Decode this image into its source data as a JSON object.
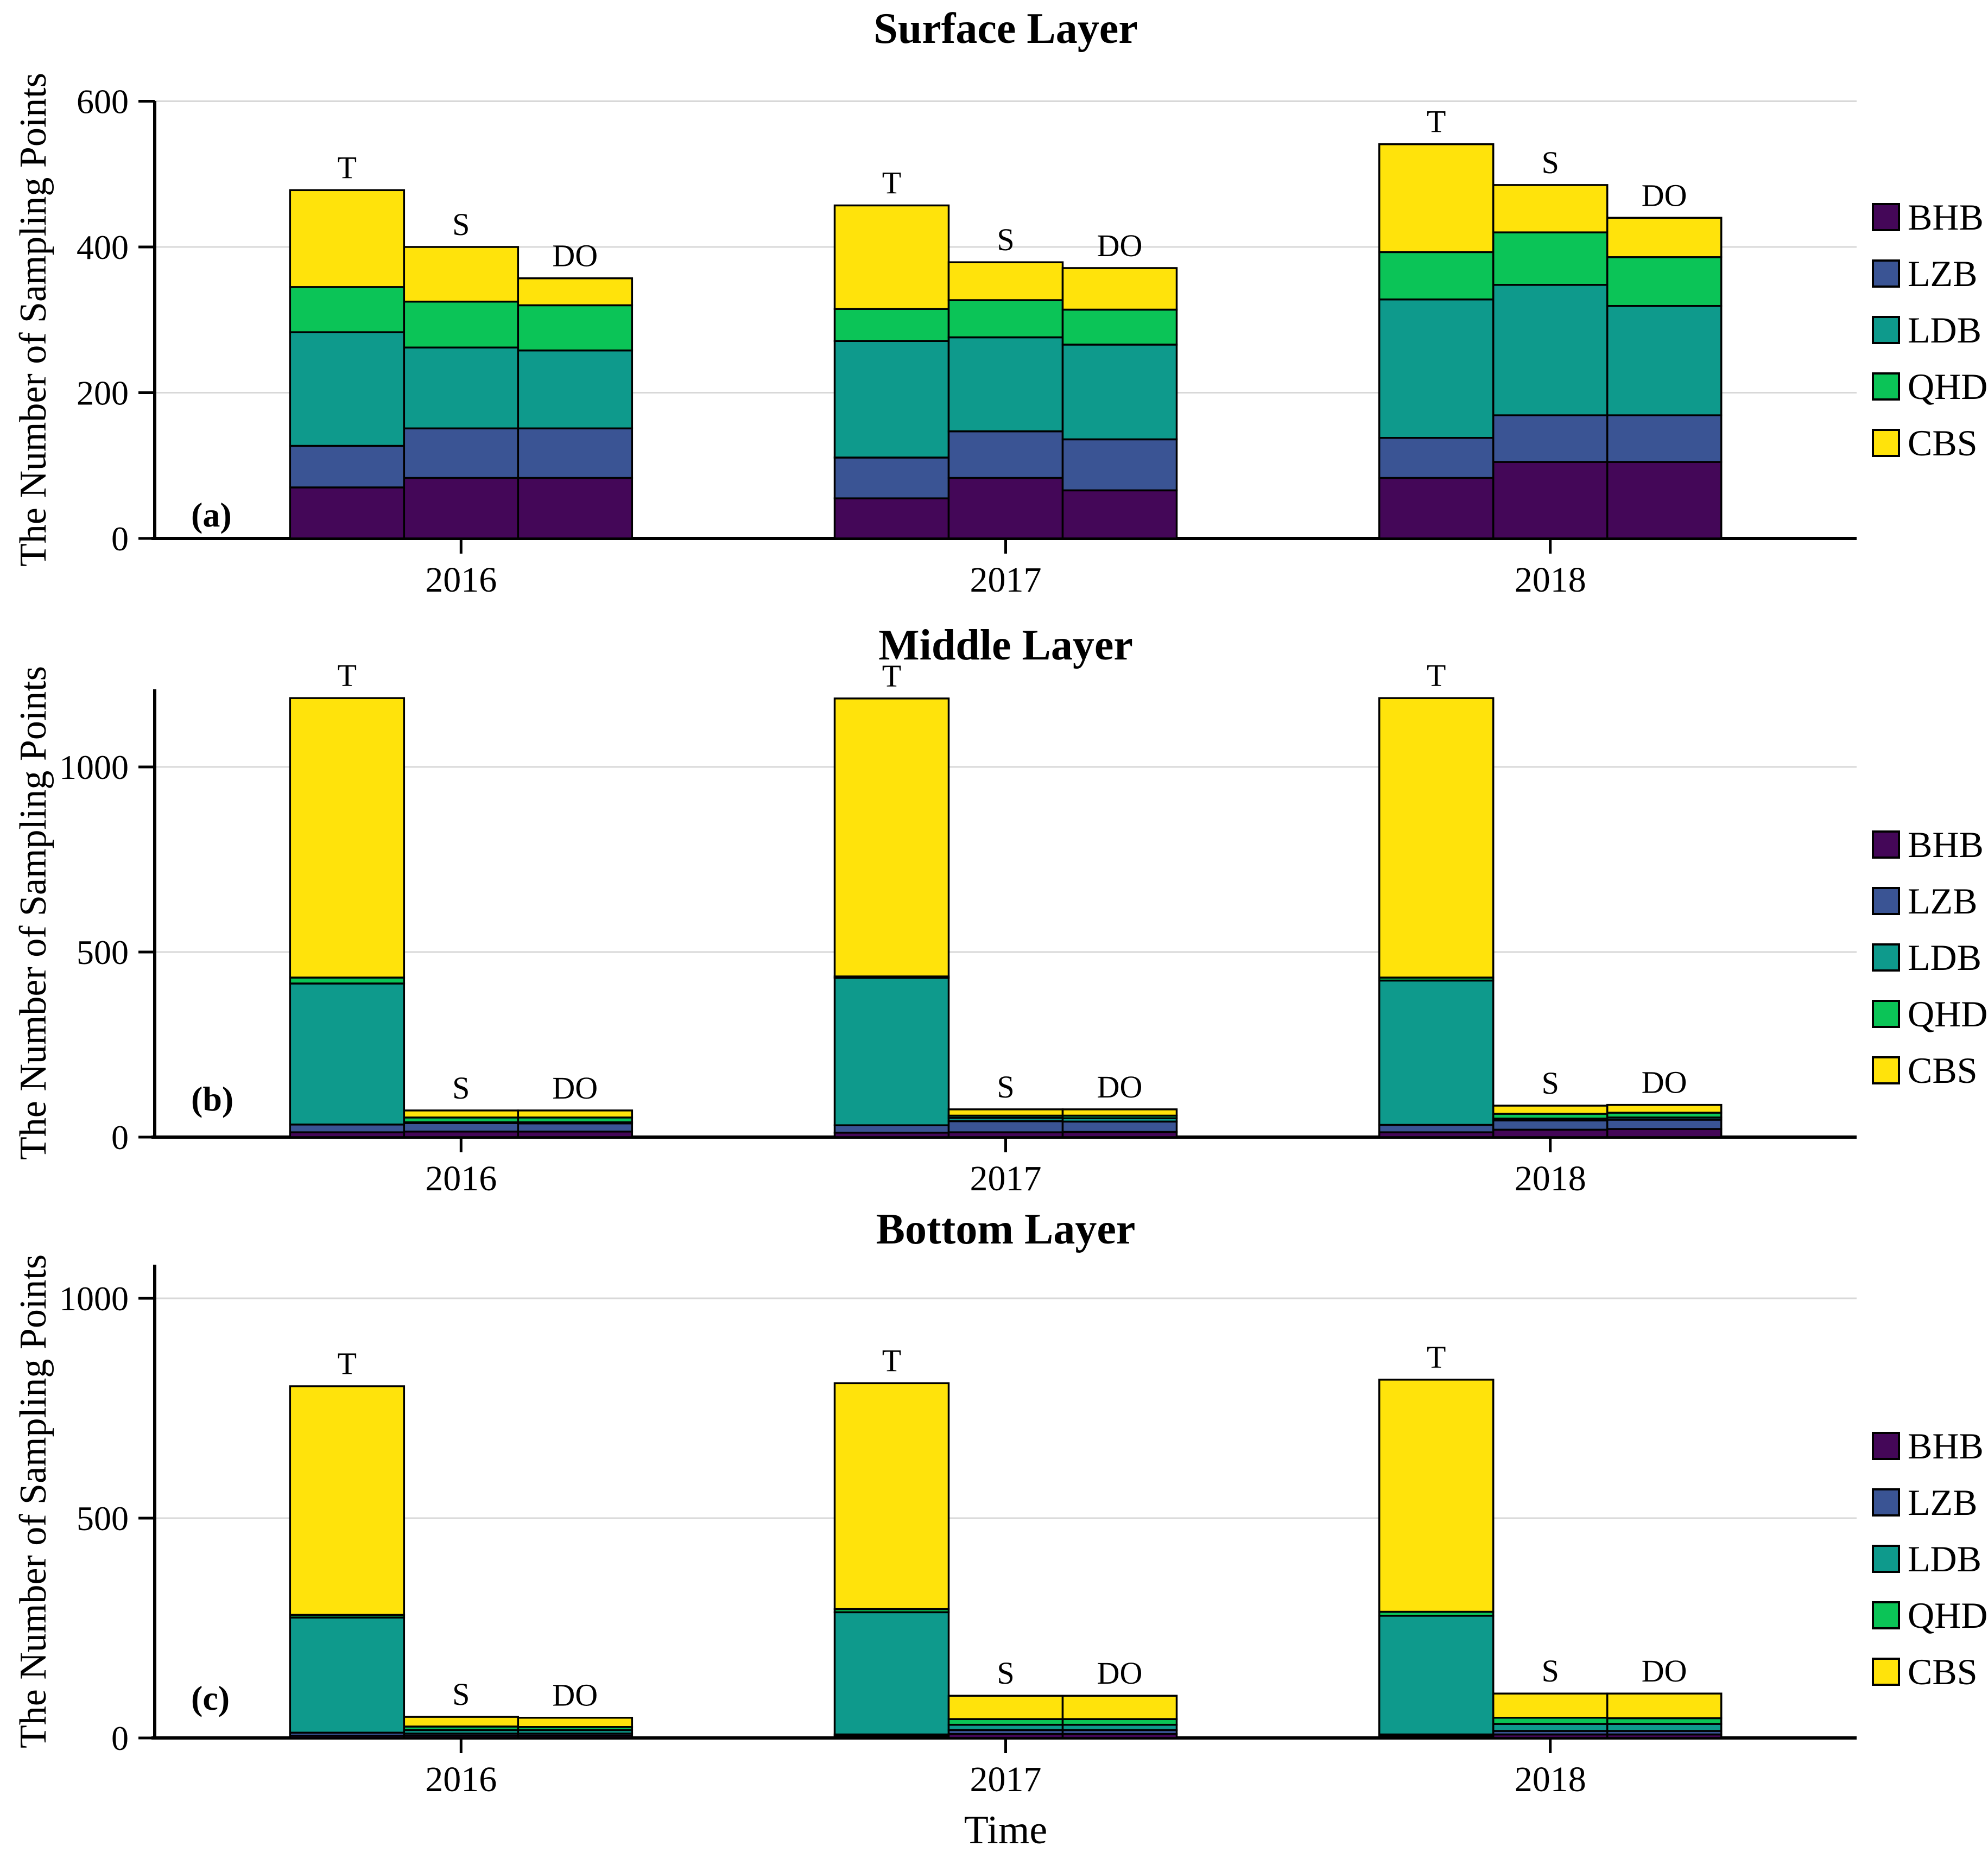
{
  "figure_labels": {
    "xlabel": "Time",
    "years": [
      "2016",
      "2017",
      "2018"
    ],
    "measurement_labels": [
      "T",
      "S",
      "DO"
    ]
  },
  "legend": {
    "position": "right",
    "entries": [
      {
        "label": "BHB",
        "color": "#440758"
      },
      {
        "label": "LZB",
        "color": "#3A5494"
      },
      {
        "label": "LDB",
        "color": "#0E9A8C"
      },
      {
        "label": "QHD",
        "color": "#0BC457"
      },
      {
        "label": "CBS",
        "color": "#FFE30B"
      }
    ]
  },
  "style": {
    "gridline_color": "#d8d8d8",
    "axis_color": "#000000",
    "bar_outline_color": "#000000",
    "background": "#ffffff"
  },
  "chart_data": {
    "type": "bar",
    "stacked": true,
    "grid": "horizontal",
    "xlabel": "Time",
    "categories": [
      "2016",
      "2017",
      "2018"
    ],
    "bar_groups": [
      "T",
      "S",
      "DO"
    ],
    "stack_order": [
      "BHB",
      "LZB",
      "LDB",
      "QHD",
      "CBS"
    ],
    "panels": [
      {
        "title": "Surface Layer",
        "panel_label": "(a)",
        "ylabel": "The Number of Sampling Points",
        "ylim": [
          0,
          600
        ],
        "yticks": [
          0,
          200,
          400,
          600
        ],
        "values": {
          "2016": {
            "T": [
              70,
              57,
              156,
              62,
              133
            ],
            "S": [
              83,
              68,
              111,
              63,
              75
            ],
            "DO": [
              83,
              68,
              107,
              62,
              37
            ]
          },
          "2017": {
            "T": [
              55,
              56,
              160,
              44,
              142
            ],
            "S": [
              83,
              64,
              129,
              51,
              52
            ],
            "DO": [
              66,
              70,
              130,
              48,
              57
            ]
          },
          "2018": {
            "T": [
              83,
              55,
              190,
              65,
              148
            ],
            "S": [
              105,
              64,
              179,
              72,
              65
            ],
            "DO": [
              105,
              64,
              150,
              67,
              54
            ]
          }
        }
      },
      {
        "title": "Middle Layer",
        "panel_label": "(b)",
        "ylabel": "The Number of Sampling Points",
        "ylim": [
          0,
          1210
        ],
        "yticks": [
          0,
          500,
          1000
        ],
        "values": {
          "2016": {
            "T": [
              13,
              21,
              381,
              16,
              755
            ],
            "S": [
              15,
              23,
              2,
              13,
              19
            ],
            "DO": [
              15,
              22,
              3,
              13,
              19
            ]
          },
          "2017": {
            "T": [
              12,
              20,
              398,
              4,
              751
            ],
            "S": [
              13,
              30,
              9,
              6,
              17
            ],
            "DO": [
              14,
              28,
              9,
              7,
              17
            ]
          },
          "2018": {
            "T": [
              13,
              20,
              390,
              8,
              755
            ],
            "S": [
              20,
              25,
              5,
              13,
              22
            ],
            "DO": [
              22,
              25,
              6,
              13,
              21
            ]
          }
        }
      },
      {
        "title": "Bottom Layer",
        "panel_label": "(c)",
        "ylabel": "The Number of Sampling Points",
        "ylim": [
          0,
          1076
        ],
        "yticks": [
          0,
          500,
          1000
        ],
        "values": {
          "2016": {
            "T": [
              5,
              7,
              262,
              6,
              520
            ],
            "S": [
              5,
              5,
              8,
              8,
              22
            ],
            "DO": [
              5,
              5,
              8,
              7,
              21
            ]
          },
          "2017": {
            "T": [
              4,
              4,
              278,
              7,
              514
            ],
            "S": [
              9,
              9,
              12,
              13,
              53
            ],
            "DO": [
              9,
              9,
              12,
              13,
              53
            ]
          },
          "2018": {
            "T": [
              4,
              4,
              270,
              9,
              528
            ],
            "S": [
              8,
              8,
              16,
              14,
              55
            ],
            "DO": [
              8,
              8,
              16,
              13,
              56
            ]
          }
        }
      }
    ]
  }
}
